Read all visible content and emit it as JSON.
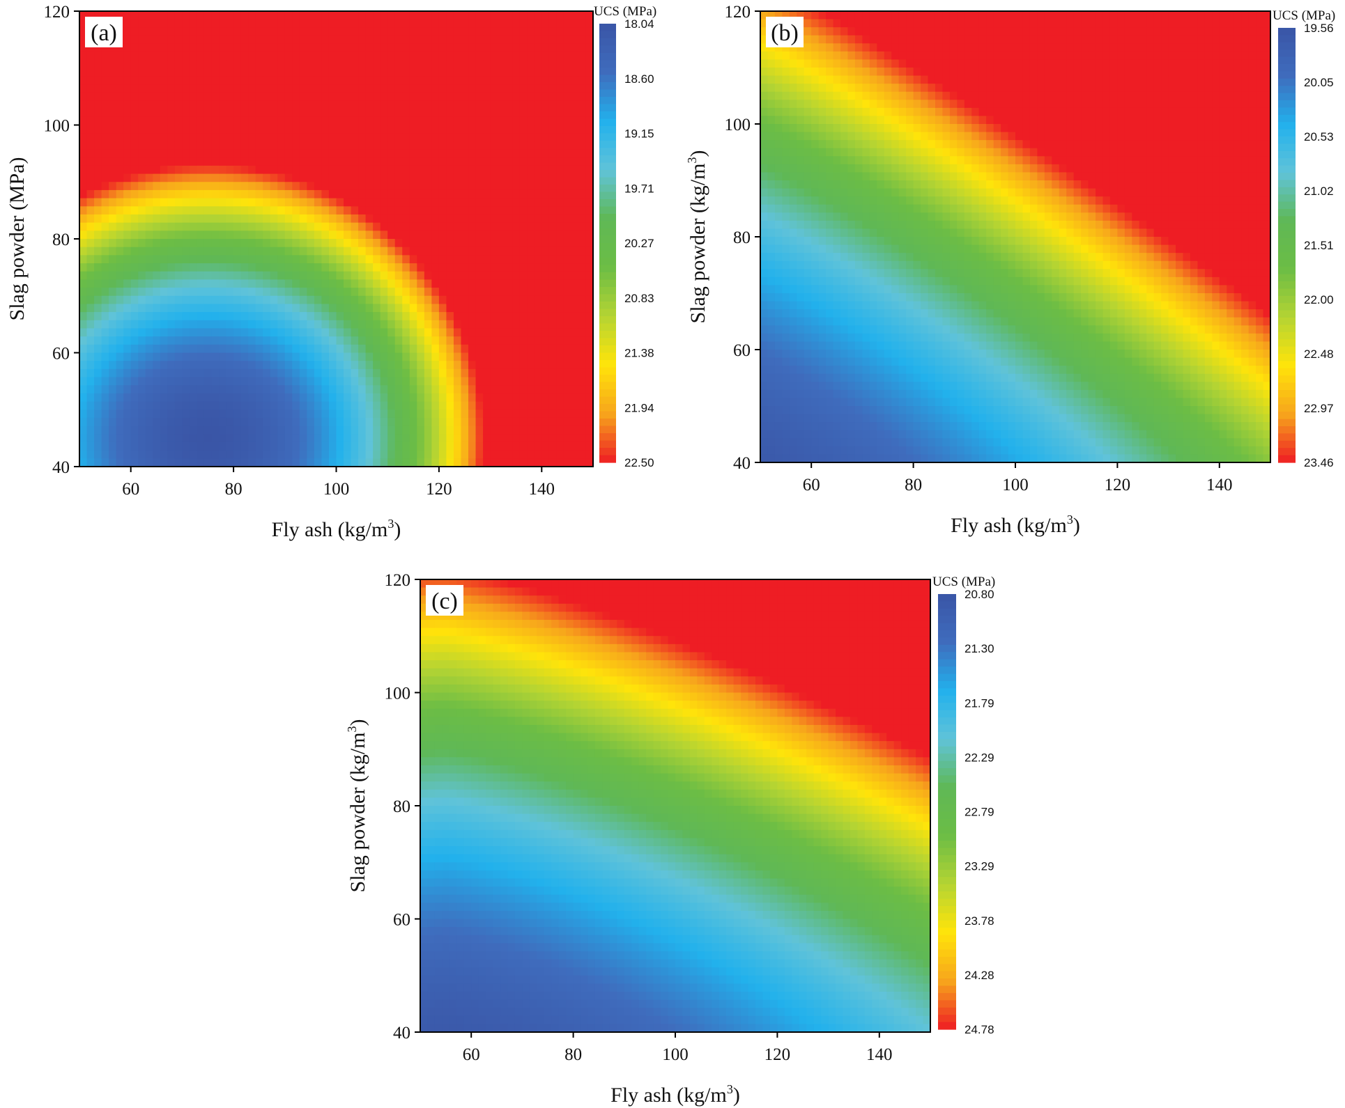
{
  "colors": {
    "scale": [
      "#3a55a6",
      "#3f6cbd",
      "#22b1ec",
      "#60c3d9",
      "#5fb856",
      "#6cbd45",
      "#b4d433",
      "#ffe40a",
      "#f7a51c",
      "#ee1d24"
    ]
  },
  "chart_data": [
    {
      "type": "heatmap",
      "panel_label": "(a)",
      "title": "",
      "xlabel": "Fly ash (kg/m",
      "xlabel_sup": "3",
      "xlabel_end": ")",
      "ylabel": "Slag powder (MPa)",
      "ylabel_sup": "",
      "ylabel_end": "",
      "xlim": [
        50,
        150
      ],
      "ylim": [
        40,
        120
      ],
      "xticks": [
        60,
        80,
        100,
        120,
        140
      ],
      "yticks": [
        40,
        60,
        80,
        100,
        120
      ],
      "colorbar": {
        "title": "UCS (MPa)",
        "ticks": [
          "18.04",
          "18.60",
          "19.15",
          "19.71",
          "20.27",
          "20.83",
          "21.38",
          "21.94",
          "22.50"
        ],
        "min": 18.04,
        "max": 22.5
      },
      "surface": {
        "center_x": 75,
        "center_y": 45,
        "scale_x": 62,
        "scale_y": 48,
        "exponent": 2,
        "tilt": 0,
        "wrap": 0.18
      }
    },
    {
      "type": "heatmap",
      "panel_label": "(b)",
      "title": "",
      "xlabel": "Fly ash (kg/m",
      "xlabel_sup": "3",
      "xlabel_end": ")",
      "ylabel": "Slag powder (kg/m",
      "ylabel_sup": "3",
      "ylabel_end": ")",
      "xlim": [
        50,
        150
      ],
      "ylim": [
        40,
        120
      ],
      "xticks": [
        60,
        80,
        100,
        120,
        140
      ],
      "yticks": [
        40,
        60,
        80,
        100,
        120
      ],
      "colorbar": {
        "title": "UCS (MPa)",
        "ticks": [
          "19.56",
          "20.05",
          "20.53",
          "21.02",
          "21.51",
          "22.00",
          "22.48",
          "22.97",
          "23.46"
        ],
        "min": 19.56,
        "max": 23.46
      },
      "surface": {
        "center_x": 40,
        "center_y": 35,
        "scale_x": 150,
        "scale_y": 95,
        "exponent": 1.25,
        "tilt": 0.25,
        "wrap": 0
      }
    },
    {
      "type": "heatmap",
      "panel_label": "(c)",
      "title": "",
      "xlabel": "Fly ash (kg/m",
      "xlabel_sup": "3",
      "xlabel_end": ")",
      "ylabel": "Slag powder (kg/m",
      "ylabel_sup": "3",
      "ylabel_end": ")",
      "xlim": [
        50,
        150
      ],
      "ylim": [
        40,
        120
      ],
      "xticks": [
        60,
        80,
        100,
        120,
        140
      ],
      "yticks": [
        40,
        60,
        80,
        100,
        120
      ],
      "colorbar": {
        "title": "UCS (MPa)",
        "ticks": [
          "20.80",
          "21.30",
          "21.79",
          "22.29",
          "22.79",
          "23.29",
          "23.78",
          "24.28",
          "24.78"
        ],
        "min": 20.8,
        "max": 24.78
      },
      "surface": {
        "center_x": 55,
        "center_y": 30,
        "scale_x": 190,
        "scale_y": 92,
        "exponent": 1.35,
        "tilt": 0.15,
        "wrap": 0
      }
    }
  ]
}
